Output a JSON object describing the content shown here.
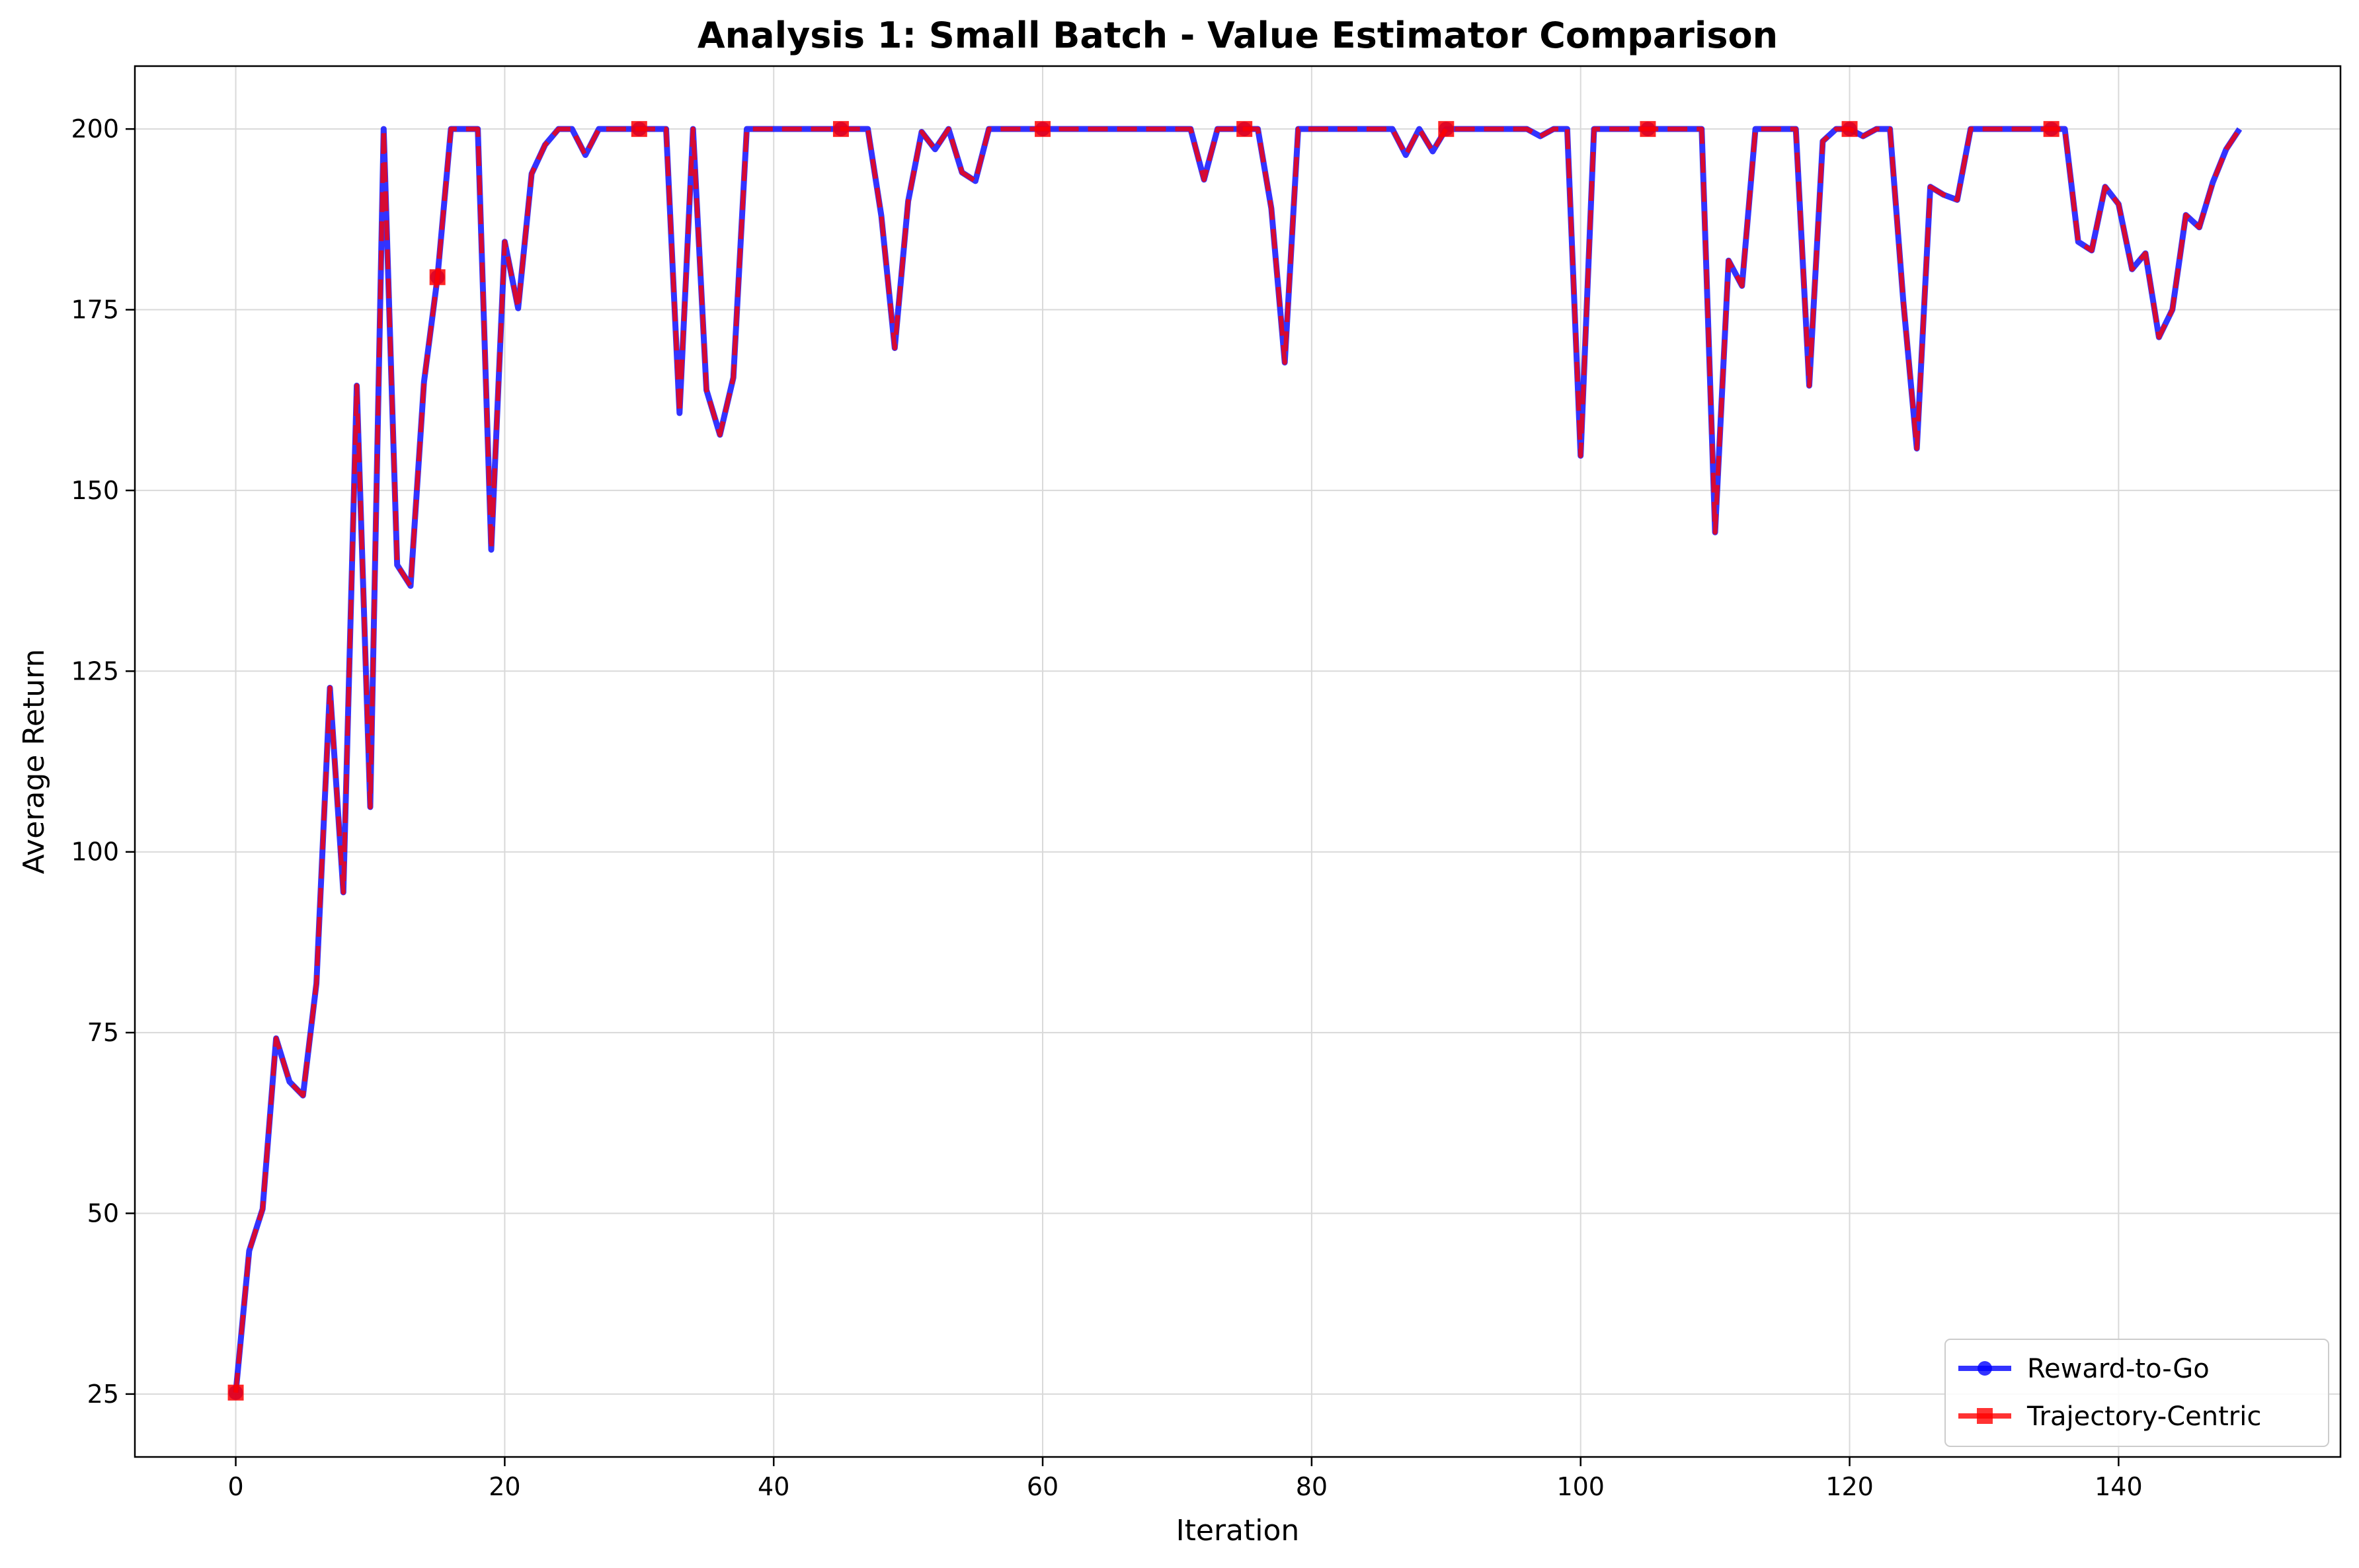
{
  "chart_data": {
    "type": "line",
    "title": "Analysis 1: Small Batch - Value Estimator Comparison",
    "xlabel": "Iteration",
    "ylabel": "Average Return",
    "xlim": [
      -7.5,
      156.5
    ],
    "ylim": [
      16.3,
      208.7
    ],
    "xticks": [
      0,
      20,
      40,
      60,
      80,
      100,
      120,
      140
    ],
    "yticks": [
      25,
      50,
      75,
      100,
      125,
      150,
      175,
      200
    ],
    "grid": true,
    "legend_position": "lower right",
    "series": [
      {
        "name": "Reward-to-Go",
        "color": "#0000ff",
        "marker": "circle",
        "marker_every": 15,
        "x_start": 0,
        "values": [
          25.2,
          44.8,
          50.6,
          74.2,
          68.2,
          66.3,
          81.8,
          122.7,
          94.4,
          164.5,
          106.2,
          200.0,
          139.7,
          136.8,
          165.0,
          179.5,
          200.0,
          200.0,
          200.0,
          141.8,
          184.4,
          175.2,
          193.8,
          197.8,
          200.0,
          200.0,
          196.4,
          200.0,
          200.0,
          200.0,
          200.0,
          200.0,
          200.0,
          160.7,
          200.0,
          163.9,
          157.7,
          165.6,
          200.0,
          200.0,
          200.0,
          200.0,
          200.0,
          200.0,
          200.0,
          200.0,
          200.0,
          200.0,
          188.0,
          169.7,
          190.0,
          199.6,
          197.2,
          200.0,
          194.0,
          192.8,
          200.0,
          200.0,
          200.0,
          200.0,
          200.0,
          200.0,
          200.0,
          200.0,
          200.0,
          200.0,
          200.0,
          200.0,
          200.0,
          200.0,
          200.0,
          200.0,
          193.0,
          200.0,
          200.0,
          200.0,
          200.0,
          189.0,
          167.7,
          200.0,
          200.0,
          200.0,
          200.0,
          200.0,
          200.0,
          200.0,
          200.0,
          196.4,
          200.0,
          196.9,
          200.0,
          200.0,
          200.0,
          200.0,
          200.0,
          200.0,
          200.0,
          199.0,
          200.0,
          200.0,
          154.8,
          200.0,
          200.0,
          200.0,
          200.0,
          200.0,
          200.0,
          200.0,
          200.0,
          200.0,
          144.2,
          181.8,
          178.3,
          200.0,
          200.0,
          200.0,
          200.0,
          164.5,
          198.3,
          200.0,
          200.0,
          199.0,
          200.0,
          200.0,
          176.0,
          155.8,
          192.0,
          190.9,
          190.2,
          200.0,
          200.0,
          200.0,
          200.0,
          200.0,
          200.0,
          200.0,
          200.0,
          184.4,
          183.2,
          192.0,
          189.6,
          180.6,
          182.8,
          171.2,
          175.0,
          188.1,
          186.4,
          192.6,
          197.2,
          200.0
        ]
      },
      {
        "name": "Trajectory-Centric",
        "color": "#ff0000",
        "marker": "square",
        "marker_every": 15,
        "x_start": 0,
        "values": [
          25.2,
          44.8,
          50.6,
          74.2,
          68.2,
          66.3,
          81.8,
          122.7,
          94.4,
          164.5,
          106.2,
          200.0,
          139.7,
          136.8,
          165.0,
          179.5,
          200.0,
          200.0,
          200.0,
          141.8,
          184.4,
          175.2,
          193.8,
          197.8,
          200.0,
          200.0,
          196.4,
          200.0,
          200.0,
          200.0,
          200.0,
          200.0,
          200.0,
          160.7,
          200.0,
          163.9,
          157.7,
          165.6,
          200.0,
          200.0,
          200.0,
          200.0,
          200.0,
          200.0,
          200.0,
          200.0,
          200.0,
          200.0,
          188.0,
          169.7,
          190.0,
          199.6,
          197.2,
          200.0,
          194.0,
          192.8,
          200.0,
          200.0,
          200.0,
          200.0,
          200.0,
          200.0,
          200.0,
          200.0,
          200.0,
          200.0,
          200.0,
          200.0,
          200.0,
          200.0,
          200.0,
          200.0,
          193.0,
          200.0,
          200.0,
          200.0,
          200.0,
          189.0,
          167.7,
          200.0,
          200.0,
          200.0,
          200.0,
          200.0,
          200.0,
          200.0,
          200.0,
          196.4,
          200.0,
          196.9,
          200.0,
          200.0,
          200.0,
          200.0,
          200.0,
          200.0,
          200.0,
          199.0,
          200.0,
          200.0,
          154.8,
          200.0,
          200.0,
          200.0,
          200.0,
          200.0,
          200.0,
          200.0,
          200.0,
          200.0,
          144.2,
          181.8,
          178.3,
          200.0,
          200.0,
          200.0,
          200.0,
          164.5,
          198.3,
          200.0,
          200.0,
          199.0,
          200.0,
          200.0,
          176.0,
          155.8,
          192.0,
          190.9,
          190.2,
          200.0,
          200.0,
          200.0,
          200.0,
          200.0,
          200.0,
          200.0,
          200.0,
          184.4,
          183.2,
          192.0,
          189.6,
          180.6,
          182.8,
          171.2,
          175.0,
          188.1,
          186.4,
          192.6,
          197.2,
          200.0
        ]
      }
    ]
  }
}
